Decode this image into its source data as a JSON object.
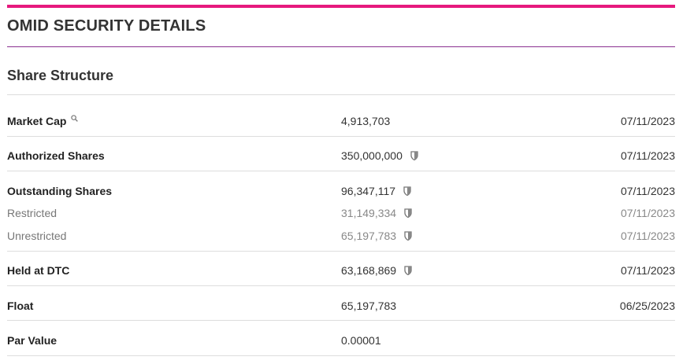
{
  "header": {
    "title": "OMID SECURITY DETAILS"
  },
  "section": {
    "title": "Share Structure"
  },
  "rows": [
    {
      "label": "Market Cap",
      "value": "4,913,703",
      "date": "07/11/2023"
    },
    {
      "label": "Authorized Shares",
      "value": "350,000,000",
      "date": "07/11/2023"
    },
    {
      "label": "Outstanding Shares",
      "value": "96,347,117",
      "date": "07/11/2023"
    },
    {
      "label": "Restricted",
      "value": "31,149,334",
      "date": "07/11/2023"
    },
    {
      "label": "Unrestricted",
      "value": "65,197,783",
      "date": "07/11/2023"
    },
    {
      "label": "Held at DTC",
      "value": "63,168,869",
      "date": "07/11/2023"
    },
    {
      "label": "Float",
      "value": "65,197,783",
      "date": "06/25/2023"
    },
    {
      "label": "Par Value",
      "value": "0.00001"
    }
  ],
  "icons": {
    "market_cap": "magnifier-icon",
    "verified": "shield-icon"
  },
  "colors": {
    "accent": "#e6197d",
    "title_rule": "#8a2f8f"
  }
}
